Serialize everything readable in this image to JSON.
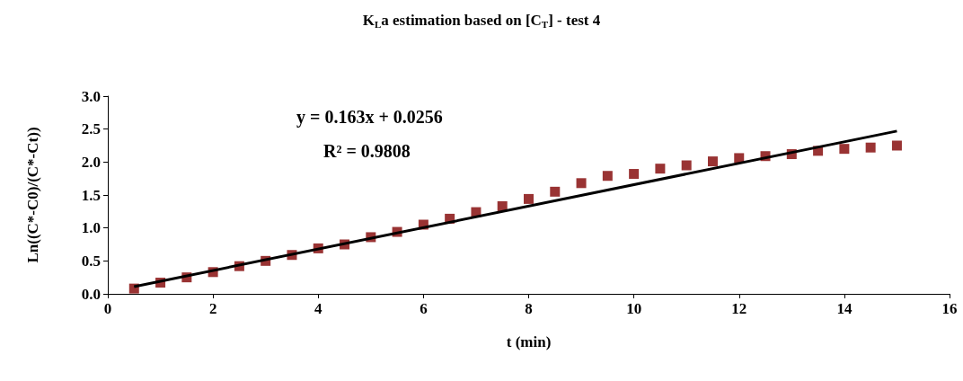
{
  "chart_data": {
    "type": "scatter",
    "title": "K$_{L}$a estimation based on [C$_{T}$] - test 4",
    "xlabel": "t (min)",
    "ylabel": "Ln((C*-C0)/(C*-Ct))",
    "annotations": [
      "y = 0.163x + 0.0256",
      "R² = 0.9808"
    ],
    "x": [
      0.5,
      1,
      1.5,
      2,
      2.5,
      3,
      3.5,
      4,
      4.5,
      5,
      5.5,
      6,
      6.5,
      7,
      7.5,
      8,
      8.5,
      9,
      9.5,
      10,
      10.5,
      11,
      11.5,
      12,
      12.5,
      13,
      13.5,
      14,
      14.5,
      15
    ],
    "series": [
      {
        "color": "#800000",
        "marker": "square",
        "values": [
          0.08,
          0.17,
          0.25,
          0.33,
          0.42,
          0.5,
          0.59,
          0.69,
          0.75,
          0.86,
          0.94,
          1.05,
          1.14,
          1.24,
          1.33,
          1.44,
          1.55,
          1.68,
          1.79,
          1.82,
          1.9,
          1.95,
          2.01,
          2.06,
          2.09,
          2.12,
          2.17,
          2.2,
          2.22,
          2.25
        ]
      },
      {
        "type": "line",
        "color": "#000000",
        "marker": "none",
        "line_style": "solid",
        "x": [
          0.5,
          15
        ],
        "values": [
          0.11,
          2.47
        ]
      }
    ],
    "xlim": [
      0,
      16
    ],
    "xticks": [
      0,
      2,
      4,
      6,
      8,
      10,
      12,
      14,
      16
    ],
    "ylim": [
      0,
      3
    ],
    "yticks": [
      {
        "value": 0,
        "label": "0.0"
      },
      {
        "value": 0.5,
        "label": "0.5"
      },
      {
        "value": 1,
        "label": "1.0"
      },
      {
        "value": 1.5,
        "label": "1.5"
      },
      {
        "value": 2,
        "label": "2.0"
      },
      {
        "value": 2.5,
        "label": "2.5"
      },
      {
        "value": 3,
        "label": "3.0"
      }
    ],
    "grid": false
  }
}
